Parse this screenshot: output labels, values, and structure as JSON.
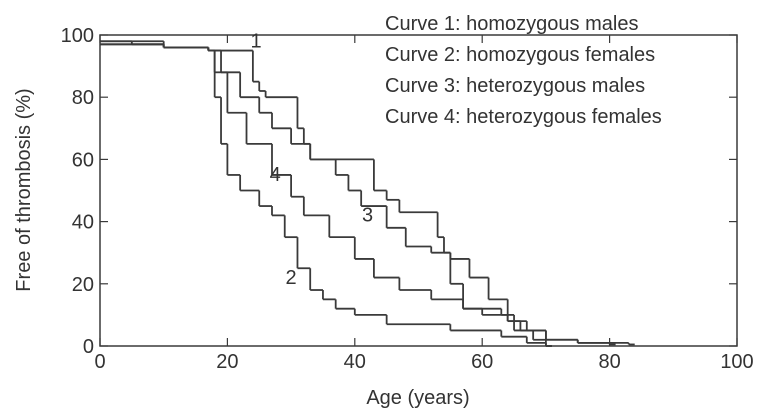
{
  "chart_data": {
    "type": "line",
    "step": "post",
    "xlabel": "Age (years)",
    "ylabel": "Free of thrombosis (%)",
    "xlim": [
      0,
      100
    ],
    "ylim": [
      0,
      100
    ],
    "xticks": [
      0,
      20,
      40,
      60,
      80,
      100
    ],
    "yticks": [
      0,
      20,
      40,
      60,
      80,
      100
    ],
    "color": "#3a3a3a",
    "series": [
      {
        "name": "Curve 1: homozygous males",
        "label": "1",
        "x": [
          0,
          5,
          10,
          15,
          17,
          24,
          25,
          26,
          31,
          32,
          33,
          43,
          45,
          47,
          53,
          54,
          55,
          57,
          63,
          65,
          68,
          70
        ],
        "values": [
          98,
          97,
          96,
          96,
          95,
          85,
          82,
          80,
          70,
          65,
          60,
          50,
          47,
          43,
          35,
          30,
          20,
          12,
          10,
          5,
          2,
          0
        ]
      },
      {
        "name": "Curve 2: homozygous females",
        "label": "2",
        "x": [
          0,
          10,
          17,
          18,
          19,
          20,
          22,
          25,
          27,
          29,
          31,
          33,
          35,
          37,
          40,
          45,
          55,
          63,
          67,
          70
        ],
        "values": [
          97,
          96,
          95,
          80,
          65,
          55,
          50,
          45,
          42,
          35,
          25,
          18,
          15,
          12,
          10,
          7,
          5,
          3,
          1,
          0
        ]
      },
      {
        "name": "Curve 3: heterozygous males",
        "label": "3",
        "x": [
          0,
          10,
          17,
          19,
          22,
          25,
          27,
          30,
          33,
          37,
          39,
          41,
          45,
          48,
          52,
          55,
          58,
          61,
          64,
          66,
          70,
          75,
          83
        ],
        "values": [
          98,
          96,
          95,
          88,
          80,
          75,
          70,
          65,
          60,
          55,
          50,
          45,
          38,
          32,
          30,
          28,
          22,
          15,
          8,
          5,
          2,
          1,
          0.5
        ]
      },
      {
        "name": "Curve 4: heterozygous females",
        "label": "4",
        "x": [
          0,
          10,
          17,
          18,
          20,
          23,
          27,
          30,
          32,
          36,
          40,
          43,
          47,
          52,
          57,
          60,
          64,
          67,
          70,
          75,
          80
        ],
        "values": [
          97,
          96,
          95,
          88,
          75,
          65,
          55,
          48,
          42,
          35,
          28,
          22,
          18,
          15,
          12,
          10,
          8,
          5,
          2,
          1,
          0.5
        ]
      }
    ]
  }
}
